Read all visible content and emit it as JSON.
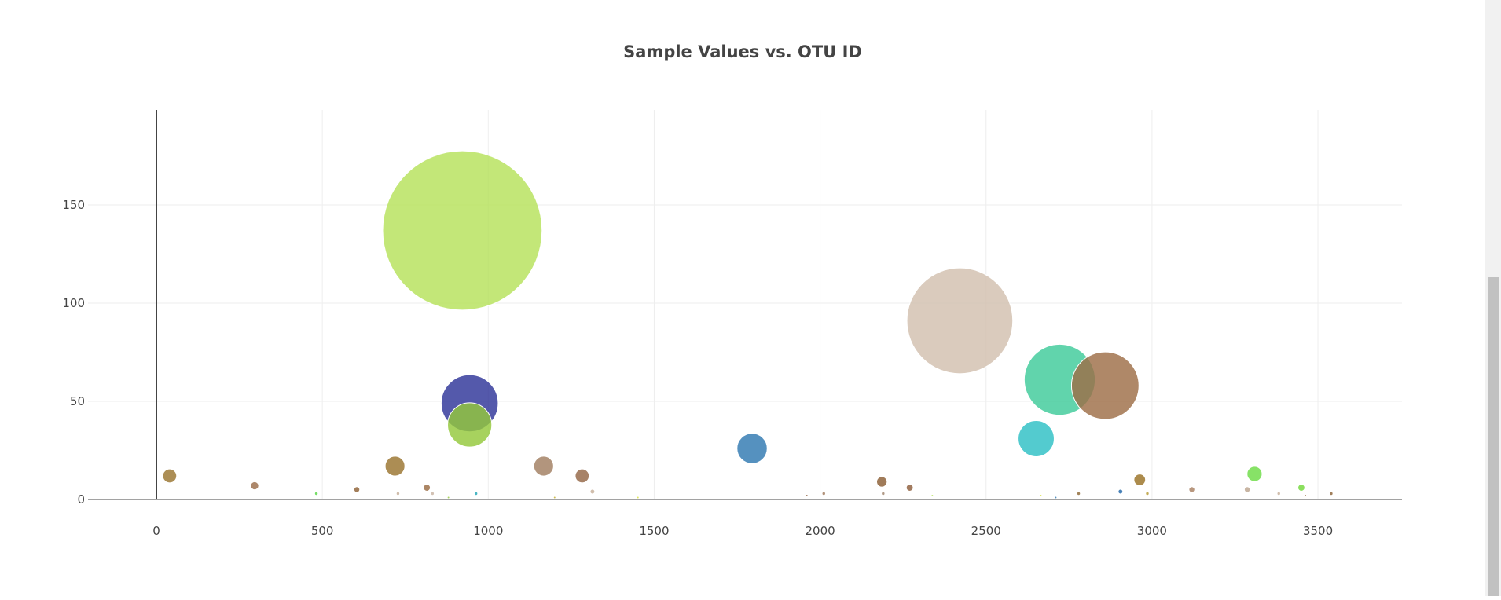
{
  "chart_data": {
    "type": "scatter",
    "title": "Sample Values vs. OTU ID",
    "xlabel": "",
    "ylabel": "",
    "xlim": [
      -200,
      3760
    ],
    "ylim": [
      0,
      200
    ],
    "x_ticks": [
      0,
      500,
      1000,
      1500,
      2000,
      2500,
      3000,
      3500
    ],
    "y_ticks": [
      0,
      50,
      100,
      150
    ],
    "grid": true,
    "legend": "none",
    "marker_size_encodes": "sample value",
    "points": [
      {
        "x": 922,
        "y": 137,
        "color": "#b6e25a"
      },
      {
        "x": 2421,
        "y": 91,
        "color": "#d2bfae"
      },
      {
        "x": 2722,
        "y": 61,
        "color": "#3ecb9a"
      },
      {
        "x": 2859,
        "y": 58,
        "color": "#9e6e47"
      },
      {
        "x": 944,
        "y": 49,
        "color": "#2e3599"
      },
      {
        "x": 944,
        "y": 38,
        "color": "#94c83a"
      },
      {
        "x": 2651,
        "y": 31,
        "color": "#2dbfc4"
      },
      {
        "x": 1795,
        "y": 26,
        "color": "#2f79b1"
      },
      {
        "x": 1167,
        "y": 17,
        "color": "#a17e60"
      },
      {
        "x": 719,
        "y": 17,
        "color": "#9a742e"
      },
      {
        "x": 3309,
        "y": 13,
        "color": "#6cdc46"
      },
      {
        "x": 1283,
        "y": 12,
        "color": "#946646"
      },
      {
        "x": 40,
        "y": 12,
        "color": "#9a7530"
      },
      {
        "x": 2963,
        "y": 10,
        "color": "#9a7225"
      },
      {
        "x": 2186,
        "y": 9,
        "color": "#8b5e34"
      },
      {
        "x": 296,
        "y": 7,
        "color": "#9b6e4b"
      },
      {
        "x": 2270,
        "y": 6,
        "color": "#8d5e3c"
      },
      {
        "x": 3450,
        "y": 6,
        "color": "#72d83a"
      },
      {
        "x": 815,
        "y": 6,
        "color": "#9a6b43"
      },
      {
        "x": 604,
        "y": 5,
        "color": "#8f6236"
      },
      {
        "x": 3120,
        "y": 5,
        "color": "#a88062"
      },
      {
        "x": 3287,
        "y": 5,
        "color": "#bca58f"
      },
      {
        "x": 1314,
        "y": 4,
        "color": "#c7b09a"
      },
      {
        "x": 2905,
        "y": 4,
        "color": "#2166a8"
      },
      {
        "x": 832,
        "y": 3,
        "color": "#c9b5a3"
      },
      {
        "x": 482,
        "y": 3,
        "color": "#58d744"
      },
      {
        "x": 2011,
        "y": 3,
        "color": "#a07a5d"
      },
      {
        "x": 2190,
        "y": 3,
        "color": "#a0846c"
      },
      {
        "x": 2779,
        "y": 3,
        "color": "#8f6936"
      },
      {
        "x": 2986,
        "y": 3,
        "color": "#b89b33"
      },
      {
        "x": 3382,
        "y": 3,
        "color": "#c7b09a"
      },
      {
        "x": 3540,
        "y": 3,
        "color": "#8d6438"
      },
      {
        "x": 963,
        "y": 3,
        "color": "#21a6b7"
      },
      {
        "x": 728,
        "y": 3,
        "color": "#c4ad97"
      },
      {
        "x": 1960,
        "y": 2,
        "color": "#8d5e3c"
      },
      {
        "x": 2338,
        "y": 2,
        "color": "#b6e25a"
      },
      {
        "x": 3462,
        "y": 2,
        "color": "#8d6438"
      },
      {
        "x": 2665,
        "y": 2,
        "color": "#d8e03a"
      },
      {
        "x": 1200,
        "y": 1,
        "color": "#c4b030"
      },
      {
        "x": 1451,
        "y": 1,
        "color": "#d8e03a"
      },
      {
        "x": 2710,
        "y": 1,
        "color": "#2f79b1"
      },
      {
        "x": 880,
        "y": 1,
        "color": "#94c83a"
      }
    ]
  }
}
